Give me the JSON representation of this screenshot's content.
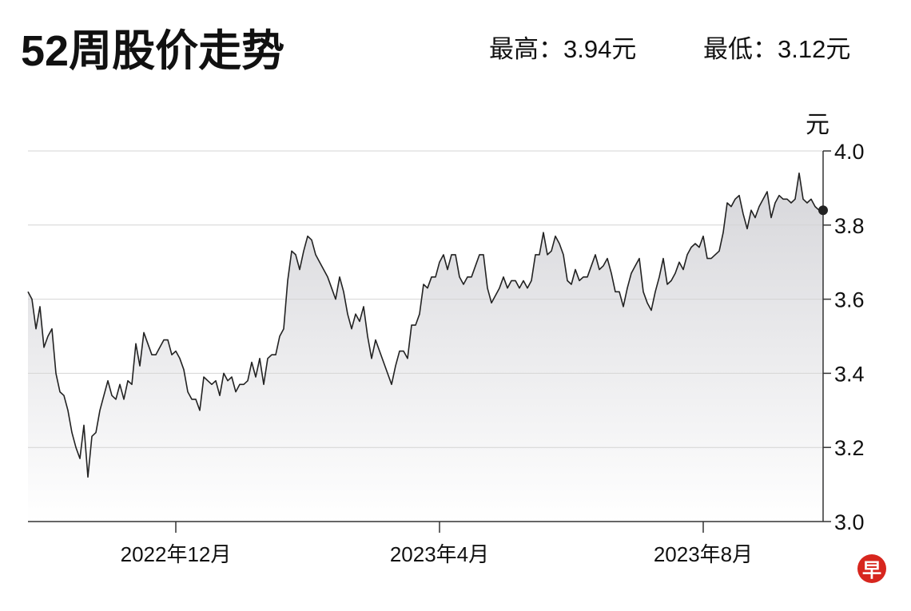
{
  "chart_data": {
    "type": "line",
    "title": "52周股价走势",
    "annotations": [
      "最高：3.94元",
      "最低：3.12元"
    ],
    "y_label": "元",
    "logo": "早",
    "color": "#222222",
    "area_fill": true,
    "end_marker": true,
    "grid": true,
    "ylim": [
      3,
      4
    ],
    "yticks": [
      {
        "value": 3,
        "label": "3.0"
      },
      3.2,
      3.4,
      3.6,
      3.8,
      {
        "value": 4,
        "label": "4.0"
      }
    ],
    "categories": [
      null,
      null,
      null,
      null,
      null,
      null,
      null,
      null,
      null,
      null,
      null,
      null,
      null,
      null,
      null,
      null,
      null,
      null,
      null,
      null,
      null,
      null,
      null,
      null,
      null,
      null,
      null,
      null,
      null,
      null,
      null,
      null,
      null,
      null,
      null,
      null,
      null,
      "2022年12月",
      null,
      null,
      null,
      null,
      null,
      null,
      null,
      null,
      null,
      null,
      null,
      null,
      null,
      null,
      null,
      null,
      null,
      null,
      null,
      null,
      null,
      null,
      null,
      null,
      null,
      null,
      null,
      null,
      null,
      null,
      null,
      null,
      null,
      null,
      null,
      null,
      null,
      null,
      null,
      null,
      null,
      null,
      null,
      null,
      null,
      null,
      null,
      null,
      null,
      null,
      null,
      null,
      null,
      null,
      null,
      null,
      null,
      null,
      null,
      null,
      null,
      null,
      null,
      null,
      null,
      "2023年4月",
      null,
      null,
      null,
      null,
      null,
      null,
      null,
      null,
      null,
      null,
      null,
      null,
      null,
      null,
      null,
      null,
      null,
      null,
      null,
      null,
      null,
      null,
      null,
      null,
      null,
      null,
      null,
      null,
      null,
      null,
      null,
      null,
      null,
      null,
      null,
      null,
      null,
      null,
      null,
      null,
      null,
      null,
      null,
      null,
      null,
      null,
      null,
      null,
      null,
      null,
      null,
      null,
      null,
      null,
      null,
      null,
      null,
      null,
      null,
      null,
      null,
      null,
      null,
      null,
      null,
      "2023年8月",
      null,
      null,
      null,
      null,
      null,
      null,
      null,
      null,
      null,
      null,
      null,
      null,
      null,
      null,
      null,
      null,
      null,
      null,
      null,
      null,
      null,
      null,
      null,
      null,
      null,
      null,
      null,
      null,
      null,
      null
    ],
    "values": [
      3.62,
      3.6,
      3.52,
      3.58,
      3.47,
      3.5,
      3.52,
      3.4,
      3.35,
      3.34,
      3.3,
      3.24,
      3.2,
      3.17,
      3.26,
      3.12,
      3.23,
      3.24,
      3.3,
      3.34,
      3.38,
      3.34,
      3.33,
      3.37,
      3.33,
      3.38,
      3.37,
      3.48,
      3.42,
      3.51,
      3.48,
      3.45,
      3.45,
      3.47,
      3.49,
      3.49,
      3.45,
      3.46,
      3.44,
      3.41,
      3.35,
      3.33,
      3.33,
      3.3,
      3.39,
      3.38,
      3.37,
      3.38,
      3.34,
      3.4,
      3.38,
      3.39,
      3.35,
      3.37,
      3.37,
      3.38,
      3.43,
      3.39,
      3.44,
      3.37,
      3.44,
      3.45,
      3.45,
      3.5,
      3.52,
      3.65,
      3.73,
      3.72,
      3.68,
      3.73,
      3.77,
      3.76,
      3.72,
      3.7,
      3.68,
      3.66,
      3.63,
      3.6,
      3.66,
      3.62,
      3.56,
      3.52,
      3.56,
      3.54,
      3.58,
      3.5,
      3.44,
      3.49,
      3.46,
      3.43,
      3.4,
      3.37,
      3.42,
      3.46,
      3.46,
      3.44,
      3.53,
      3.53,
      3.56,
      3.64,
      3.63,
      3.66,
      3.66,
      3.7,
      3.72,
      3.68,
      3.72,
      3.72,
      3.66,
      3.64,
      3.66,
      3.66,
      3.69,
      3.72,
      3.72,
      3.63,
      3.59,
      3.61,
      3.63,
      3.66,
      3.63,
      3.65,
      3.65,
      3.63,
      3.65,
      3.63,
      3.65,
      3.72,
      3.72,
      3.78,
      3.72,
      3.73,
      3.77,
      3.75,
      3.72,
      3.65,
      3.64,
      3.68,
      3.65,
      3.66,
      3.66,
      3.69,
      3.72,
      3.68,
      3.69,
      3.71,
      3.67,
      3.62,
      3.62,
      3.58,
      3.63,
      3.67,
      3.69,
      3.71,
      3.62,
      3.59,
      3.57,
      3.62,
      3.66,
      3.71,
      3.64,
      3.65,
      3.67,
      3.7,
      3.68,
      3.72,
      3.74,
      3.75,
      3.74,
      3.77,
      3.71,
      3.71,
      3.72,
      3.73,
      3.78,
      3.86,
      3.85,
      3.87,
      3.88,
      3.83,
      3.79,
      3.84,
      3.82,
      3.85,
      3.87,
      3.89,
      3.82,
      3.86,
      3.88,
      3.87,
      3.87,
      3.86,
      3.87,
      3.94,
      3.87,
      3.86,
      3.87,
      3.85,
      3.84,
      3.84
    ]
  }
}
